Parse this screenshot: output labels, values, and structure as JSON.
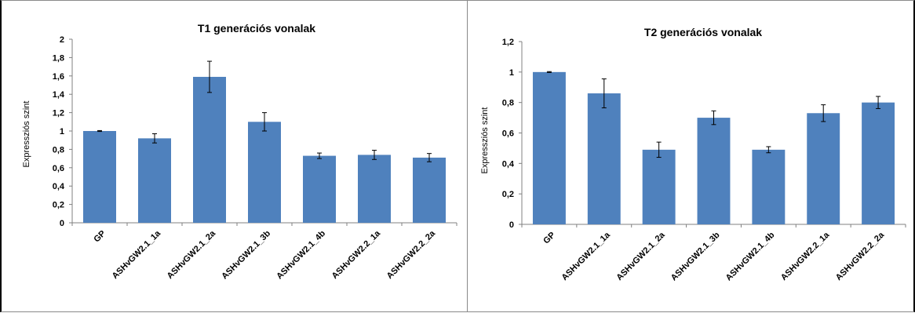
{
  "chart_data": [
    {
      "type": "bar",
      "title": "T1 generációs vonalak",
      "xlabel": "",
      "ylabel": "Expressziós szint",
      "ylim": [
        0,
        2
      ],
      "yticks": [
        "0",
        "0,2",
        "0,4",
        "0,6",
        "0,8",
        "1",
        "1,2",
        "1,4",
        "1,6",
        "1,8",
        "2"
      ],
      "categories": [
        "GP",
        "ASHvGW2.1_1a",
        "ASHvGW2.1_2a",
        "ASHvGW2.1_3b",
        "ASHvGW2.1_4b",
        "ASHvGW2.2_1a",
        "ASHvGW2.2_2a"
      ],
      "values": [
        1.0,
        0.92,
        1.59,
        1.1,
        0.73,
        0.74,
        0.71
      ],
      "errors": [
        0.005,
        0.05,
        0.17,
        0.1,
        0.03,
        0.05,
        0.045
      ],
      "grid": false,
      "legend": "none",
      "bar_color": "#4f81bd"
    },
    {
      "type": "bar",
      "title": "T2 generációs vonalak",
      "xlabel": "",
      "ylabel": "Expressziós szint",
      "ylim": [
        0,
        1.2
      ],
      "yticks": [
        "0",
        "0,2",
        "0,4",
        "0,6",
        "0,8",
        "1",
        "1,2"
      ],
      "categories": [
        "GP",
        "ASHvGW2.1_1a",
        "ASHvGW2.1_2a",
        "ASHvGW2.1_3b",
        "ASHvGW2.1_4b",
        "ASHvGW2.2_1a",
        "ASHvGW2.2_2a"
      ],
      "values": [
        1.0,
        0.86,
        0.49,
        0.7,
        0.49,
        0.73,
        0.8
      ],
      "errors": [
        0.003,
        0.095,
        0.05,
        0.045,
        0.02,
        0.055,
        0.04
      ],
      "grid": false,
      "legend": "none",
      "bar_color": "#4f81bd"
    }
  ]
}
